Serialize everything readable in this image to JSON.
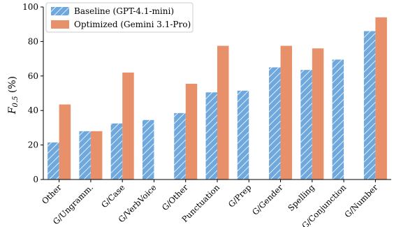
{
  "chart_data": {
    "type": "bar",
    "categories": [
      "Other",
      "G/Ungramm.",
      "G/Case",
      "G/VerbVoice",
      "G/Other",
      "Punctuation",
      "G/Prep",
      "G/Gender",
      "Spelling",
      "G/Conjunction",
      "G/Number"
    ],
    "series": [
      {
        "name": "Baseline (GPT-4.1-mini)",
        "color": "#6fa8dc",
        "hatch": true,
        "values": [
          21.5,
          28,
          32.5,
          34.5,
          38.5,
          50.5,
          51.5,
          65,
          63.5,
          69.5,
          86
        ]
      },
      {
        "name": "Optimized (Gemini 3.1-Pro)",
        "color": "#e8906a",
        "hatch": false,
        "values": [
          43.5,
          28,
          62,
          null,
          55.5,
          77.5,
          null,
          77.5,
          76,
          null,
          94
        ]
      }
    ],
    "title": "",
    "xlabel": "",
    "ylabel_main": "F",
    "ylabel_sub": "0.5",
    "ylabel_unit": " (%)",
    "ylim": [
      0,
      100
    ],
    "yticks": [
      "0",
      "20",
      "40",
      "60",
      "80",
      "100"
    ],
    "grid": false,
    "legend_position": "top-left"
  }
}
